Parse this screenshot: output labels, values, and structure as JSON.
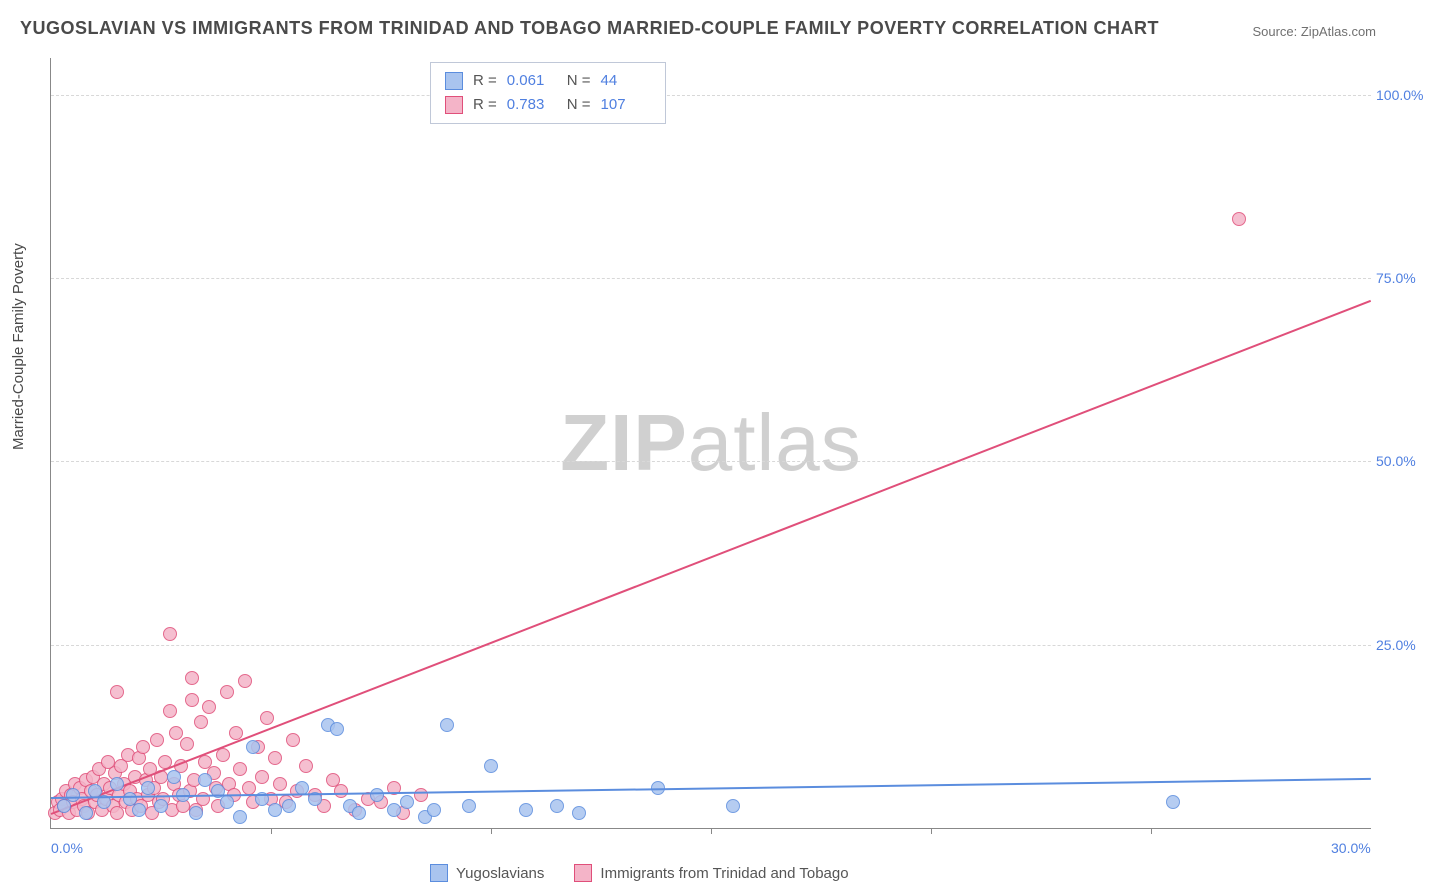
{
  "title": "YUGOSLAVIAN VS IMMIGRANTS FROM TRINIDAD AND TOBAGO MARRIED-COUPLE FAMILY POVERTY CORRELATION CHART",
  "source": "Source: ZipAtlas.com",
  "ylabel": "Married-Couple Family Poverty",
  "watermark_bold": "ZIP",
  "watermark_light": "atlas",
  "chart": {
    "type": "scatter",
    "xlim": [
      0,
      30
    ],
    "ylim": [
      0,
      105
    ],
    "xtick_labels": [
      "0.0%",
      "30.0%"
    ],
    "xtick_positions": [
      0,
      30
    ],
    "xtick_minor": [
      5,
      10,
      15,
      20,
      25
    ],
    "ytick_labels": [
      "25.0%",
      "50.0%",
      "75.0%",
      "100.0%"
    ],
    "ytick_positions": [
      25,
      50,
      75,
      100
    ],
    "grid_color": "#d8d8d8",
    "axis_color": "#888888",
    "tick_label_color": "#4f7fe0",
    "background_color": "#ffffff",
    "marker_radius": 7,
    "marker_border_width": 1.2,
    "marker_fill_opacity": 0.35
  },
  "series_a": {
    "name": "Yugoslavians",
    "color_border": "#5b8dde",
    "color_fill": "#a9c4ef",
    "R": "0.061",
    "N": "44",
    "trend": {
      "y_at_x0": 4.2,
      "y_at_xmax": 6.8
    },
    "points": [
      [
        0.3,
        3.0
      ],
      [
        0.5,
        4.5
      ],
      [
        0.8,
        2.0
      ],
      [
        1.0,
        5.0
      ],
      [
        1.2,
        3.5
      ],
      [
        1.5,
        6.0
      ],
      [
        1.8,
        4.0
      ],
      [
        2.0,
        2.5
      ],
      [
        2.2,
        5.5
      ],
      [
        2.5,
        3.0
      ],
      [
        2.8,
        7.0
      ],
      [
        3.0,
        4.5
      ],
      [
        3.3,
        2.0
      ],
      [
        3.5,
        6.5
      ],
      [
        3.8,
        5.0
      ],
      [
        4.0,
        3.5
      ],
      [
        4.3,
        1.5
      ],
      [
        4.6,
        11.0
      ],
      [
        4.8,
        4.0
      ],
      [
        5.1,
        2.5
      ],
      [
        5.4,
        3.0
      ],
      [
        5.7,
        5.5
      ],
      [
        6.0,
        4.0
      ],
      [
        6.3,
        14.0
      ],
      [
        6.5,
        13.5
      ],
      [
        6.8,
        3.0
      ],
      [
        7.0,
        2.0
      ],
      [
        7.4,
        4.5
      ],
      [
        7.8,
        2.5
      ],
      [
        8.1,
        3.5
      ],
      [
        8.5,
        1.5
      ],
      [
        8.7,
        2.5
      ],
      [
        9.0,
        14.0
      ],
      [
        9.5,
        3.0
      ],
      [
        10.0,
        8.5
      ],
      [
        10.8,
        2.5
      ],
      [
        11.5,
        3.0
      ],
      [
        12.0,
        2.0
      ],
      [
        13.8,
        5.5
      ],
      [
        15.5,
        3.0
      ],
      [
        25.5,
        3.5
      ]
    ]
  },
  "series_b": {
    "name": "Immigrants from Trinidad and Tobago",
    "color_border": "#e04f7a",
    "color_fill": "#f4b4c8",
    "R": "0.783",
    "N": "107",
    "trend": {
      "y_at_x0": 2.0,
      "y_at_xmax": 72.0
    },
    "points": [
      [
        0.1,
        2.0
      ],
      [
        0.15,
        3.5
      ],
      [
        0.2,
        2.5
      ],
      [
        0.25,
        4.0
      ],
      [
        0.3,
        3.0
      ],
      [
        0.35,
        5.0
      ],
      [
        0.4,
        2.0
      ],
      [
        0.45,
        4.5
      ],
      [
        0.5,
        3.5
      ],
      [
        0.55,
        6.0
      ],
      [
        0.6,
        2.5
      ],
      [
        0.65,
        5.5
      ],
      [
        0.7,
        4.0
      ],
      [
        0.75,
        3.0
      ],
      [
        0.8,
        6.5
      ],
      [
        0.85,
        2.0
      ],
      [
        0.9,
        5.0
      ],
      [
        0.95,
        7.0
      ],
      [
        1.0,
        3.5
      ],
      [
        1.05,
        4.5
      ],
      [
        1.1,
        8.0
      ],
      [
        1.15,
        2.5
      ],
      [
        1.2,
        6.0
      ],
      [
        1.25,
        4.0
      ],
      [
        1.3,
        9.0
      ],
      [
        1.35,
        5.5
      ],
      [
        1.4,
        3.0
      ],
      [
        1.45,
        7.5
      ],
      [
        1.5,
        2.0
      ],
      [
        1.55,
        4.5
      ],
      [
        1.6,
        8.5
      ],
      [
        1.65,
        6.0
      ],
      [
        1.7,
        3.5
      ],
      [
        1.75,
        10.0
      ],
      [
        1.8,
        5.0
      ],
      [
        1.85,
        2.5
      ],
      [
        1.9,
        7.0
      ],
      [
        1.95,
        4.0
      ],
      [
        2.0,
        9.5
      ],
      [
        2.05,
        3.0
      ],
      [
        2.1,
        11.0
      ],
      [
        2.15,
        6.5
      ],
      [
        2.2,
        4.5
      ],
      [
        2.25,
        8.0
      ],
      [
        2.3,
        2.0
      ],
      [
        2.35,
        5.5
      ],
      [
        2.4,
        12.0
      ],
      [
        2.45,
        3.5
      ],
      [
        2.5,
        7.0
      ],
      [
        2.55,
        4.0
      ],
      [
        2.6,
        9.0
      ],
      [
        2.7,
        16.0
      ],
      [
        2.75,
        2.5
      ],
      [
        2.8,
        6.0
      ],
      [
        2.85,
        13.0
      ],
      [
        2.9,
        4.5
      ],
      [
        2.95,
        8.5
      ],
      [
        3.0,
        3.0
      ],
      [
        3.1,
        11.5
      ],
      [
        3.15,
        5.0
      ],
      [
        3.2,
        17.5
      ],
      [
        3.25,
        6.5
      ],
      [
        3.3,
        2.5
      ],
      [
        3.4,
        14.5
      ],
      [
        3.45,
        4.0
      ],
      [
        3.5,
        9.0
      ],
      [
        3.6,
        16.5
      ],
      [
        3.7,
        7.5
      ],
      [
        3.75,
        5.5
      ],
      [
        3.8,
        3.0
      ],
      [
        3.9,
        10.0
      ],
      [
        4.0,
        18.5
      ],
      [
        4.05,
        6.0
      ],
      [
        4.15,
        4.5
      ],
      [
        4.2,
        13.0
      ],
      [
        4.3,
        8.0
      ],
      [
        4.4,
        20.0
      ],
      [
        4.5,
        5.5
      ],
      [
        4.6,
        3.5
      ],
      [
        4.7,
        11.0
      ],
      [
        4.8,
        7.0
      ],
      [
        4.9,
        15.0
      ],
      [
        5.0,
        4.0
      ],
      [
        5.1,
        9.5
      ],
      [
        5.2,
        6.0
      ],
      [
        5.35,
        3.5
      ],
      [
        5.5,
        12.0
      ],
      [
        5.6,
        5.0
      ],
      [
        5.8,
        8.5
      ],
      [
        6.0,
        4.5
      ],
      [
        6.2,
        3.0
      ],
      [
        6.4,
        6.5
      ],
      [
        6.6,
        5.0
      ],
      [
        6.9,
        2.5
      ],
      [
        7.2,
        4.0
      ],
      [
        7.5,
        3.5
      ],
      [
        7.8,
        5.5
      ],
      [
        8.0,
        2.0
      ],
      [
        8.4,
        4.5
      ],
      [
        2.7,
        26.5
      ],
      [
        3.2,
        20.5
      ],
      [
        1.5,
        18.5
      ],
      [
        27.0,
        83.0
      ]
    ]
  },
  "legend_top": {
    "r_label": "R =",
    "n_label": "N ="
  },
  "legend_bottom": {
    "a_label": "Yugoslavians",
    "b_label": "Immigrants from Trinidad and Tobago"
  }
}
